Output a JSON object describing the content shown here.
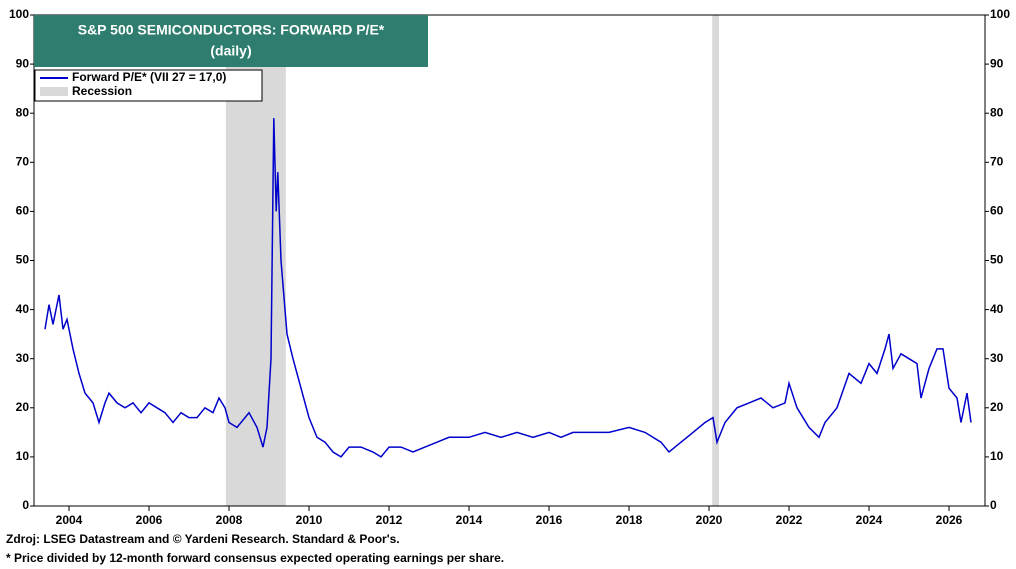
{
  "chart_data": {
    "type": "line",
    "title": "S&P 500 SEMICONDUCTORS: FORWARD P/E*",
    "subtitle": "(daily)",
    "source": "Zdroj: LSEG Datastream and © Yardeni Research. Standard & Poor's.",
    "footnote": "* Price divided by 12-month forward consensus expected operating earnings per share.",
    "xlim": [
      2003.125,
      2026.9
    ],
    "xticks": [
      2004,
      2006,
      2008,
      2010,
      2012,
      2014,
      2016,
      2018,
      2020,
      2022,
      2024,
      2026
    ],
    "ylim": [
      0,
      100
    ],
    "yticks": [
      0,
      10,
      20,
      30,
      40,
      50,
      60,
      70,
      80,
      90,
      100
    ],
    "y2lim": [
      0,
      100
    ],
    "y2ticks": [
      0,
      10,
      20,
      30,
      40,
      50,
      60,
      70,
      80,
      90,
      100
    ],
    "legend": "top-left",
    "recession": {
      "name": "Recession",
      "color": "#d9d9d9",
      "periods": [
        [
          2007.92,
          2009.42
        ],
        [
          2020.08,
          2020.25
        ]
      ]
    },
    "x": [
      2003.4,
      2003.5,
      2003.6,
      2003.75,
      2003.85,
      2003.95,
      2004.1,
      2004.25,
      2004.4,
      2004.6,
      2004.75,
      2004.9,
      2005.0,
      2005.2,
      2005.4,
      2005.6,
      2005.8,
      2006.0,
      2006.2,
      2006.4,
      2006.6,
      2006.8,
      2007.0,
      2007.2,
      2007.4,
      2007.6,
      2007.75,
      2007.9,
      2008.0,
      2008.2,
      2008.4,
      2008.5,
      2008.7,
      2008.85,
      2008.95,
      2009.05,
      2009.12,
      2009.18,
      2009.22,
      2009.3,
      2009.45,
      2009.6,
      2009.8,
      2010.0,
      2010.2,
      2010.4,
      2010.6,
      2010.8,
      2011.0,
      2011.3,
      2011.6,
      2011.8,
      2012.0,
      2012.3,
      2012.6,
      2012.9,
      2013.2,
      2013.5,
      2013.8,
      2014.0,
      2014.4,
      2014.8,
      2015.2,
      2015.6,
      2016.0,
      2016.3,
      2016.6,
      2017.0,
      2017.5,
      2018.0,
      2018.4,
      2018.8,
      2019.0,
      2019.3,
      2019.6,
      2019.9,
      2020.1,
      2020.2,
      2020.4,
      2020.7,
      2021.0,
      2021.3,
      2021.6,
      2021.9,
      2022.0,
      2022.2,
      2022.5,
      2022.75,
      2022.9,
      2023.2,
      2023.5,
      2023.8,
      2024.0,
      2024.2,
      2024.4,
      2024.5,
      2024.6,
      2024.8,
      2025.0,
      2025.2,
      2025.3,
      2025.5,
      2025.7,
      2025.85,
      2026.0,
      2026.2,
      2026.3,
      2026.45,
      2026.55
    ],
    "series": [
      {
        "name": "Forward P/E* (VII 27 = 17,0)",
        "color": "#0000cc",
        "values": [
          36,
          41,
          37,
          43,
          36,
          38,
          32,
          27,
          23,
          21,
          17,
          21,
          23,
          21,
          20,
          21,
          19,
          21,
          20,
          19,
          17,
          19,
          18,
          18,
          20,
          19,
          22,
          20,
          17,
          16,
          18,
          19,
          16,
          12,
          16,
          30,
          79,
          60,
          68,
          50,
          35,
          30,
          24,
          18,
          14,
          13,
          11,
          10,
          12,
          12,
          11,
          10,
          12,
          12,
          11,
          12,
          13,
          14,
          14,
          14,
          15,
          14,
          15,
          14,
          15,
          14,
          15,
          15,
          15,
          16,
          15,
          13,
          11,
          13,
          15,
          17,
          18,
          13,
          17,
          20,
          21,
          22,
          20,
          21,
          25,
          20,
          16,
          14,
          17,
          20,
          27,
          25,
          29,
          27,
          32,
          35,
          28,
          31,
          30,
          29,
          22,
          28,
          32,
          32,
          24,
          22,
          17,
          23,
          17
        ]
      }
    ]
  }
}
